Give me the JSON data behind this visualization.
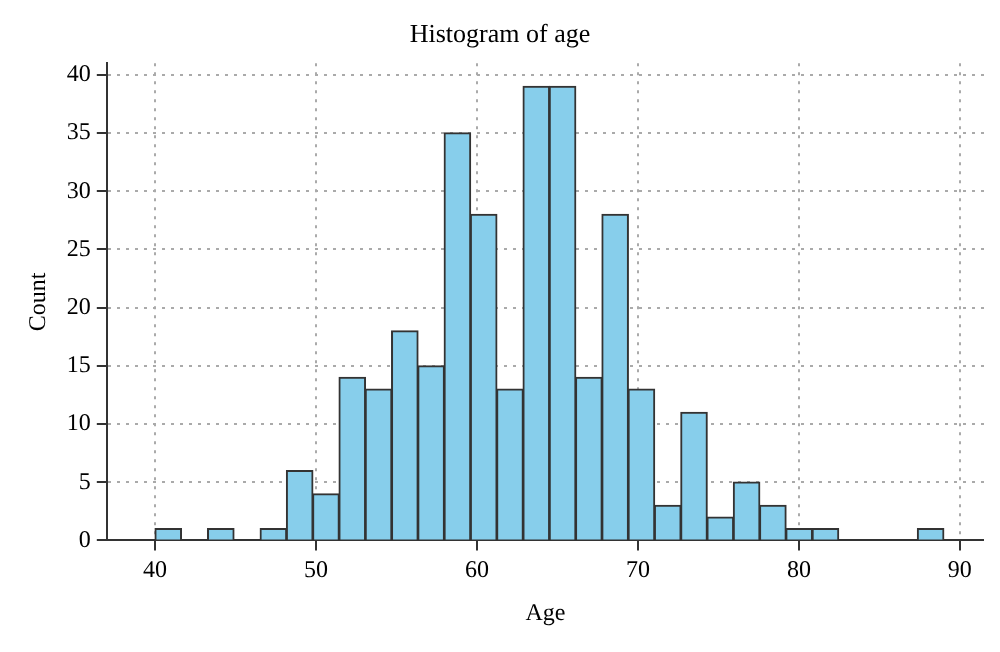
{
  "chart_data": {
    "type": "histogram",
    "title": "Histogram of age",
    "xlabel": "Age",
    "ylabel": "Count",
    "bins": [
      40,
      41.633,
      43.267,
      44.9,
      46.533,
      48.167,
      49.8,
      51.433,
      53.067,
      54.7,
      56.333,
      57.967,
      59.6,
      61.233,
      62.867,
      64.5,
      66.133,
      67.767,
      69.4,
      71.033,
      72.667,
      74.3,
      75.933,
      77.567,
      79.2,
      80.833,
      82.467,
      84.1,
      85.733,
      87.367,
      89
    ],
    "values": [
      1,
      0,
      1,
      0,
      1,
      6,
      4,
      14,
      13,
      18,
      15,
      35,
      28,
      13,
      39,
      39,
      14,
      28,
      13,
      3,
      11,
      2,
      5,
      3,
      1,
      1,
      0,
      0,
      0,
      1
    ],
    "color": "#87ceeb",
    "xlim": [
      37,
      91.5
    ],
    "ylim": [
      0,
      41
    ],
    "xticks": [
      40,
      50,
      60,
      70,
      80,
      90
    ],
    "yticks": [
      0,
      5,
      10,
      15,
      20,
      25,
      30,
      35,
      40
    ],
    "grid": true,
    "legend": false
  }
}
